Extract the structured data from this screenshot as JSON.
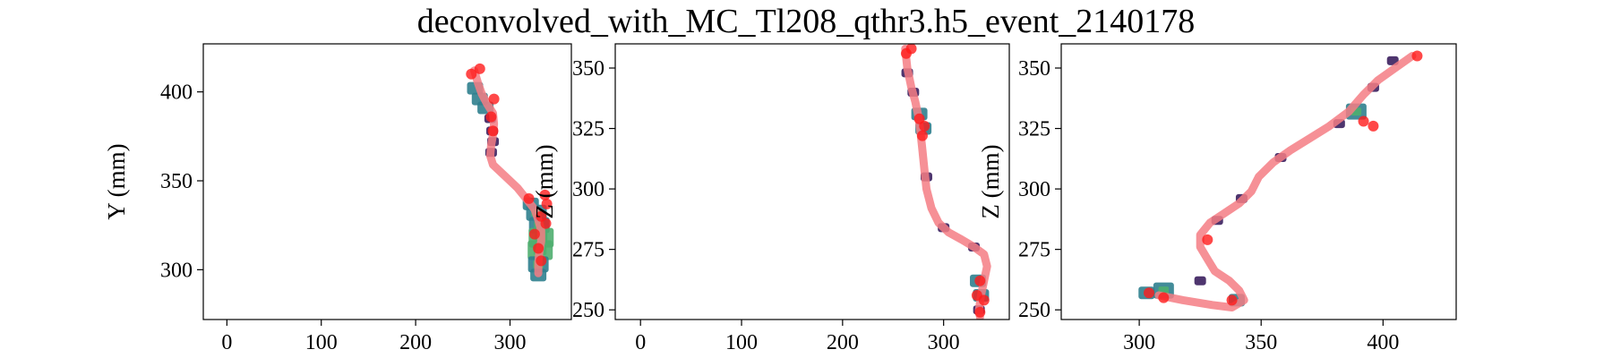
{
  "title": "deconvolved_with_MC_Tl208_qthr3.h5_event_2140178",
  "colors": {
    "track": "#f47c84",
    "cluster": "#ff1a1a",
    "density_low": "#3b1f5e",
    "density_mid": "#2f7f8e",
    "density_high": "#4fae6f"
  },
  "chart_data": [
    {
      "type": "heatmap",
      "xlabel": "",
      "ylabel": "Y (mm)",
      "xlim": [
        -25,
        365
      ],
      "ylim": [
        272,
        427
      ],
      "xticks": [
        0,
        100,
        200,
        300
      ],
      "yticks": [
        300,
        350,
        400
      ],
      "track": [
        [
          262,
          412
        ],
        [
          266,
          405
        ],
        [
          270,
          399
        ],
        [
          276,
          393
        ],
        [
          282,
          388
        ],
        [
          283,
          382
        ],
        [
          282,
          376
        ],
        [
          280,
          370
        ],
        [
          279,
          364
        ],
        [
          282,
          359
        ],
        [
          290,
          355
        ],
        [
          300,
          350
        ],
        [
          308,
          346
        ],
        [
          314,
          342
        ],
        [
          320,
          338
        ],
        [
          326,
          334
        ],
        [
          330,
          328
        ],
        [
          333,
          322
        ],
        [
          333,
          316
        ],
        [
          331,
          310
        ],
        [
          330,
          304
        ],
        [
          330,
          298
        ]
      ],
      "clusters": [
        [
          259,
          410
        ],
        [
          268,
          413
        ],
        [
          283,
          396
        ],
        [
          280,
          386
        ],
        [
          282,
          378
        ],
        [
          320,
          340
        ],
        [
          337,
          342
        ],
        [
          339,
          337
        ],
        [
          333,
          330
        ],
        [
          338,
          326
        ],
        [
          326,
          320
        ],
        [
          330,
          312
        ],
        [
          333,
          305
        ]
      ],
      "density": [
        [
          263,
          402,
          2
        ],
        [
          268,
          396,
          2
        ],
        [
          274,
          391,
          2
        ],
        [
          279,
          385,
          1
        ],
        [
          281,
          378,
          1
        ],
        [
          282,
          372,
          1
        ],
        [
          280,
          366,
          1
        ],
        [
          322,
          337,
          2
        ],
        [
          328,
          332,
          3
        ],
        [
          331,
          325,
          3
        ],
        [
          333,
          318,
          4
        ],
        [
          332,
          311,
          4
        ],
        [
          330,
          303,
          3
        ],
        [
          330,
          297,
          2
        ]
      ]
    },
    {
      "type": "heatmap",
      "xlabel": "",
      "ylabel": "Z (mm)",
      "xlim": [
        -25,
        365
      ],
      "ylim": [
        246,
        360
      ],
      "xticks": [
        0,
        100,
        200,
        300
      ],
      "yticks": [
        250,
        275,
        300,
        325,
        350
      ],
      "track": [
        [
          262,
          358
        ],
        [
          264,
          350
        ],
        [
          268,
          342
        ],
        [
          272,
          336
        ],
        [
          275,
          330
        ],
        [
          277,
          324
        ],
        [
          279,
          316
        ],
        [
          281,
          308
        ],
        [
          283,
          300
        ],
        [
          288,
          292
        ],
        [
          295,
          286
        ],
        [
          305,
          282
        ],
        [
          318,
          279
        ],
        [
          330,
          276
        ],
        [
          340,
          273
        ],
        [
          343,
          268
        ],
        [
          340,
          262
        ],
        [
          337,
          256
        ],
        [
          335,
          250
        ],
        [
          336,
          247
        ]
      ],
      "clusters": [
        [
          263,
          356
        ],
        [
          268,
          358
        ],
        [
          276,
          329
        ],
        [
          281,
          326
        ],
        [
          279,
          322
        ],
        [
          336,
          262
        ],
        [
          333,
          256
        ],
        [
          340,
          254
        ],
        [
          336,
          249
        ]
      ],
      "density": [
        [
          264,
          348,
          1
        ],
        [
          270,
          340,
          1
        ],
        [
          276,
          331,
          2
        ],
        [
          280,
          325,
          2
        ],
        [
          283,
          305,
          1
        ],
        [
          300,
          284,
          1
        ],
        [
          330,
          276,
          1
        ],
        [
          334,
          262,
          2
        ],
        [
          337,
          256,
          2
        ],
        [
          335,
          250,
          1
        ]
      ]
    },
    {
      "type": "heatmap",
      "xlabel": "",
      "ylabel": "Z (mm)",
      "xlim": [
        268,
        430
      ],
      "ylim": [
        246,
        360
      ],
      "xticks": [
        300,
        350,
        400
      ],
      "yticks": [
        250,
        275,
        300,
        325,
        350
      ],
      "track": [
        [
          412,
          355
        ],
        [
          405,
          350
        ],
        [
          398,
          345
        ],
        [
          392,
          339
        ],
        [
          386,
          332
        ],
        [
          378,
          326
        ],
        [
          370,
          321
        ],
        [
          362,
          316
        ],
        [
          355,
          311
        ],
        [
          349,
          305
        ],
        [
          346,
          299
        ],
        [
          341,
          294
        ],
        [
          335,
          290
        ],
        [
          329,
          286
        ],
        [
          325,
          281
        ],
        [
          325,
          276
        ],
        [
          328,
          271
        ],
        [
          331,
          266
        ],
        [
          337,
          262
        ],
        [
          341,
          258
        ],
        [
          343,
          254
        ],
        [
          338,
          251
        ],
        [
          330,
          252
        ],
        [
          318,
          254
        ],
        [
          308,
          256
        ]
      ],
      "clusters": [
        [
          414,
          355
        ],
        [
          396,
          326
        ],
        [
          392,
          328
        ],
        [
          328,
          279
        ],
        [
          338,
          254
        ],
        [
          310,
          255
        ],
        [
          304,
          257
        ]
      ],
      "density": [
        [
          404,
          353,
          1
        ],
        [
          396,
          342,
          1
        ],
        [
          389,
          332,
          3
        ],
        [
          382,
          327,
          1
        ],
        [
          358,
          313,
          1
        ],
        [
          342,
          296,
          1
        ],
        [
          332,
          287,
          1
        ],
        [
          310,
          258,
          3
        ],
        [
          303,
          257,
          2
        ],
        [
          340,
          254,
          2
        ],
        [
          325,
          262,
          1
        ]
      ]
    }
  ]
}
